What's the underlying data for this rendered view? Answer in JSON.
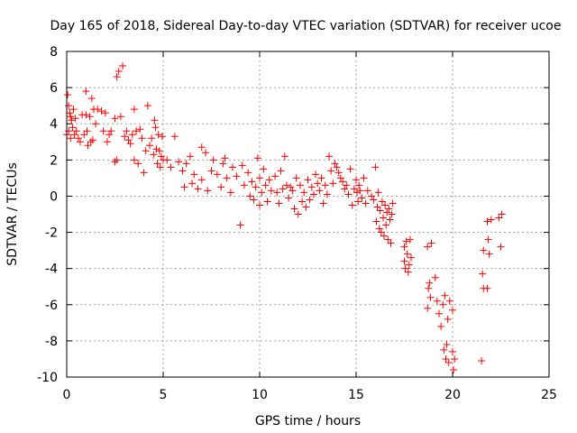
{
  "chart_data": {
    "type": "scatter",
    "title": "Day 165 of 2018, Sidereal Day-to-day VTEC variation (SDTVAR) for receiver ucoe",
    "xlabel": "GPS time / hours",
    "ylabel": "SDTVAR / TECUs",
    "xlim": [
      0,
      25
    ],
    "ylim": [
      -10,
      8
    ],
    "xticks": [
      0,
      5,
      10,
      15,
      20,
      25
    ],
    "yticks": [
      -10,
      -8,
      -6,
      -4,
      -2,
      0,
      2,
      4,
      6,
      8
    ],
    "grid": true,
    "marker": "plus",
    "series": [
      {
        "name": "ucoe",
        "color": "#ff0000",
        "points": [
          [
            0.0,
            3.4
          ],
          [
            0.05,
            5.6
          ],
          [
            0.1,
            5.0
          ],
          [
            0.1,
            3.6
          ],
          [
            0.15,
            4.6
          ],
          [
            0.2,
            4.4
          ],
          [
            0.2,
            3.2
          ],
          [
            0.25,
            4.2
          ],
          [
            0.3,
            3.8
          ],
          [
            0.35,
            4.8
          ],
          [
            0.4,
            3.4
          ],
          [
            0.45,
            4.3
          ],
          [
            0.5,
            3.6
          ],
          [
            0.6,
            3.2
          ],
          [
            0.7,
            3.0
          ],
          [
            0.8,
            4.5
          ],
          [
            0.9,
            3.4
          ],
          [
            1.0,
            5.8
          ],
          [
            1.0,
            4.5
          ],
          [
            1.05,
            3.6
          ],
          [
            1.1,
            2.8
          ],
          [
            1.2,
            4.4
          ],
          [
            1.25,
            3.0
          ],
          [
            1.3,
            5.4
          ],
          [
            1.35,
            3.1
          ],
          [
            1.4,
            4.8
          ],
          [
            1.5,
            4.0
          ],
          [
            1.6,
            4.8
          ],
          [
            1.8,
            4.7
          ],
          [
            1.9,
            3.6
          ],
          [
            2.0,
            4.6
          ],
          [
            2.1,
            3.0
          ],
          [
            2.2,
            3.4
          ],
          [
            2.3,
            3.6
          ],
          [
            2.5,
            4.3
          ],
          [
            2.5,
            1.9
          ],
          [
            2.6,
            6.6
          ],
          [
            2.6,
            2.0
          ],
          [
            2.7,
            6.9
          ],
          [
            2.8,
            4.4
          ],
          [
            2.9,
            7.2
          ],
          [
            3.0,
            3.3
          ],
          [
            3.1,
            3.6
          ],
          [
            3.2,
            3.1
          ],
          [
            3.3,
            2.9
          ],
          [
            3.4,
            3.4
          ],
          [
            3.5,
            4.8
          ],
          [
            3.5,
            2.0
          ],
          [
            3.6,
            3.6
          ],
          [
            3.7,
            1.8
          ],
          [
            3.8,
            3.7
          ],
          [
            3.9,
            3.2
          ],
          [
            4.0,
            1.3
          ],
          [
            4.1,
            2.5
          ],
          [
            4.2,
            5.0
          ],
          [
            4.3,
            2.8
          ],
          [
            4.4,
            3.2
          ],
          [
            4.5,
            2.3
          ],
          [
            4.55,
            4.2
          ],
          [
            4.6,
            3.8
          ],
          [
            4.65,
            2.6
          ],
          [
            4.7,
            1.8
          ],
          [
            4.75,
            3.4
          ],
          [
            4.8,
            2.5
          ],
          [
            4.85,
            1.6
          ],
          [
            4.9,
            2.2
          ],
          [
            4.95,
            3.3
          ],
          [
            5.0,
            2.0
          ],
          [
            5.2,
            2.0
          ],
          [
            5.4,
            1.6
          ],
          [
            5.6,
            3.3
          ],
          [
            5.8,
            1.9
          ],
          [
            6.0,
            1.4
          ],
          [
            6.1,
            0.5
          ],
          [
            6.2,
            1.8
          ],
          [
            6.4,
            2.2
          ],
          [
            6.5,
            0.7
          ],
          [
            6.6,
            1.2
          ],
          [
            6.8,
            0.4
          ],
          [
            7.0,
            2.7
          ],
          [
            7.0,
            0.9
          ],
          [
            7.2,
            2.4
          ],
          [
            7.3,
            0.3
          ],
          [
            7.5,
            1.4
          ],
          [
            7.6,
            2.0
          ],
          [
            7.8,
            1.2
          ],
          [
            8.0,
            0.5
          ],
          [
            8.1,
            1.8
          ],
          [
            8.2,
            2.1
          ],
          [
            8.3,
            1.0
          ],
          [
            8.5,
            0.2
          ],
          [
            8.6,
            1.6
          ],
          [
            8.8,
            1.1
          ],
          [
            9.0,
            -1.6
          ],
          [
            9.1,
            1.7
          ],
          [
            9.2,
            0.6
          ],
          [
            9.4,
            1.3
          ],
          [
            9.5,
            0.0
          ],
          [
            9.6,
            0.8
          ],
          [
            9.7,
            -0.2
          ],
          [
            9.8,
            0.5
          ],
          [
            9.9,
            2.1
          ],
          [
            10.0,
            1.0
          ],
          [
            10.0,
            -0.5
          ],
          [
            10.1,
            0.2
          ],
          [
            10.2,
            1.5
          ],
          [
            10.3,
            0.6
          ],
          [
            10.4,
            -0.3
          ],
          [
            10.5,
            0.9
          ],
          [
            10.6,
            0.3
          ],
          [
            10.8,
            1.1
          ],
          [
            10.9,
            0.2
          ],
          [
            11.0,
            -0.4
          ],
          [
            11.1,
            1.4
          ],
          [
            11.2,
            0.4
          ],
          [
            11.3,
            2.2
          ],
          [
            11.4,
            0.6
          ],
          [
            11.5,
            -0.1
          ],
          [
            11.6,
            0.5
          ],
          [
            11.7,
            0.3
          ],
          [
            11.8,
            -0.7
          ],
          [
            11.9,
            1.0
          ],
          [
            12.0,
            -1.0
          ],
          [
            12.1,
            0.6
          ],
          [
            12.2,
            -0.3
          ],
          [
            12.3,
            0.2
          ],
          [
            12.4,
            -0.6
          ],
          [
            12.5,
            0.9
          ],
          [
            12.6,
            -0.2
          ],
          [
            12.7,
            0.5
          ],
          [
            12.8,
            0.1
          ],
          [
            12.9,
            1.2
          ],
          [
            13.0,
            0.7
          ],
          [
            13.1,
            0.3
          ],
          [
            13.2,
            1.0
          ],
          [
            13.3,
            -0.4
          ],
          [
            13.4,
            0.6
          ],
          [
            13.5,
            0.1
          ],
          [
            13.6,
            2.2
          ],
          [
            13.7,
            1.4
          ],
          [
            13.8,
            0.7
          ],
          [
            13.9,
            1.8
          ],
          [
            14.0,
            1.6
          ],
          [
            14.1,
            1.3
          ],
          [
            14.2,
            1.0
          ],
          [
            14.3,
            0.8
          ],
          [
            14.4,
            0.4
          ],
          [
            14.5,
            0.6
          ],
          [
            14.6,
            0.1
          ],
          [
            14.7,
            1.5
          ],
          [
            14.8,
            -0.5
          ],
          [
            14.9,
            0.4
          ],
          [
            15.0,
            0.9
          ],
          [
            15.05,
            0.2
          ],
          [
            15.1,
            -0.3
          ],
          [
            15.15,
            0.6
          ],
          [
            15.2,
            0.3
          ],
          [
            15.3,
            -0.1
          ],
          [
            15.4,
            1.0
          ],
          [
            15.5,
            -0.4
          ],
          [
            15.6,
            0.3
          ],
          [
            15.8,
            0.0
          ],
          [
            15.9,
            -0.2
          ],
          [
            16.0,
            1.6
          ],
          [
            16.05,
            -1.4
          ],
          [
            16.1,
            -0.6
          ],
          [
            16.15,
            0.2
          ],
          [
            16.2,
            -1.8
          ],
          [
            16.25,
            -0.8
          ],
          [
            16.3,
            -2.0
          ],
          [
            16.35,
            -0.3
          ],
          [
            16.4,
            -1.2
          ],
          [
            16.45,
            -2.2
          ],
          [
            16.5,
            -0.5
          ],
          [
            16.55,
            -1.6
          ],
          [
            16.6,
            -0.9
          ],
          [
            16.65,
            -2.4
          ],
          [
            16.7,
            -0.7
          ],
          [
            16.75,
            -1.3
          ],
          [
            16.8,
            -2.6
          ],
          [
            16.85,
            -1.0
          ],
          [
            16.9,
            -0.4
          ],
          [
            17.5,
            -3.6
          ],
          [
            17.5,
            -2.8
          ],
          [
            17.55,
            -4.0
          ],
          [
            17.6,
            -2.5
          ],
          [
            17.65,
            -3.2
          ],
          [
            17.7,
            -4.2
          ],
          [
            17.75,
            -3.8
          ],
          [
            17.8,
            -2.4
          ],
          [
            17.85,
            -3.4
          ],
          [
            18.7,
            -2.8
          ],
          [
            18.7,
            -6.2
          ],
          [
            18.75,
            -5.1
          ],
          [
            18.8,
            -4.8
          ],
          [
            18.85,
            -5.6
          ],
          [
            18.9,
            -2.6
          ],
          [
            19.1,
            -4.5
          ],
          [
            19.2,
            -5.8
          ],
          [
            19.3,
            -6.5
          ],
          [
            19.4,
            -7.2
          ],
          [
            19.5,
            -6.0
          ],
          [
            19.55,
            -8.5
          ],
          [
            19.6,
            -5.5
          ],
          [
            19.65,
            -9.0
          ],
          [
            19.7,
            -8.2
          ],
          [
            19.75,
            -6.8
          ],
          [
            19.8,
            -9.2
          ],
          [
            19.85,
            -5.8
          ],
          [
            20.0,
            -8.6
          ],
          [
            20.0,
            -6.3
          ],
          [
            20.05,
            -9.6
          ],
          [
            20.1,
            -9.0
          ],
          [
            21.5,
            -9.1
          ],
          [
            21.55,
            -4.3
          ],
          [
            21.6,
            -3.0
          ],
          [
            21.6,
            -5.1
          ],
          [
            21.8,
            -1.4
          ],
          [
            21.8,
            -5.1
          ],
          [
            21.85,
            -2.4
          ],
          [
            21.9,
            -3.2
          ],
          [
            22.0,
            -1.3
          ],
          [
            22.4,
            -1.2
          ],
          [
            22.5,
            -2.8
          ],
          [
            22.55,
            -1.0
          ]
        ]
      }
    ]
  }
}
